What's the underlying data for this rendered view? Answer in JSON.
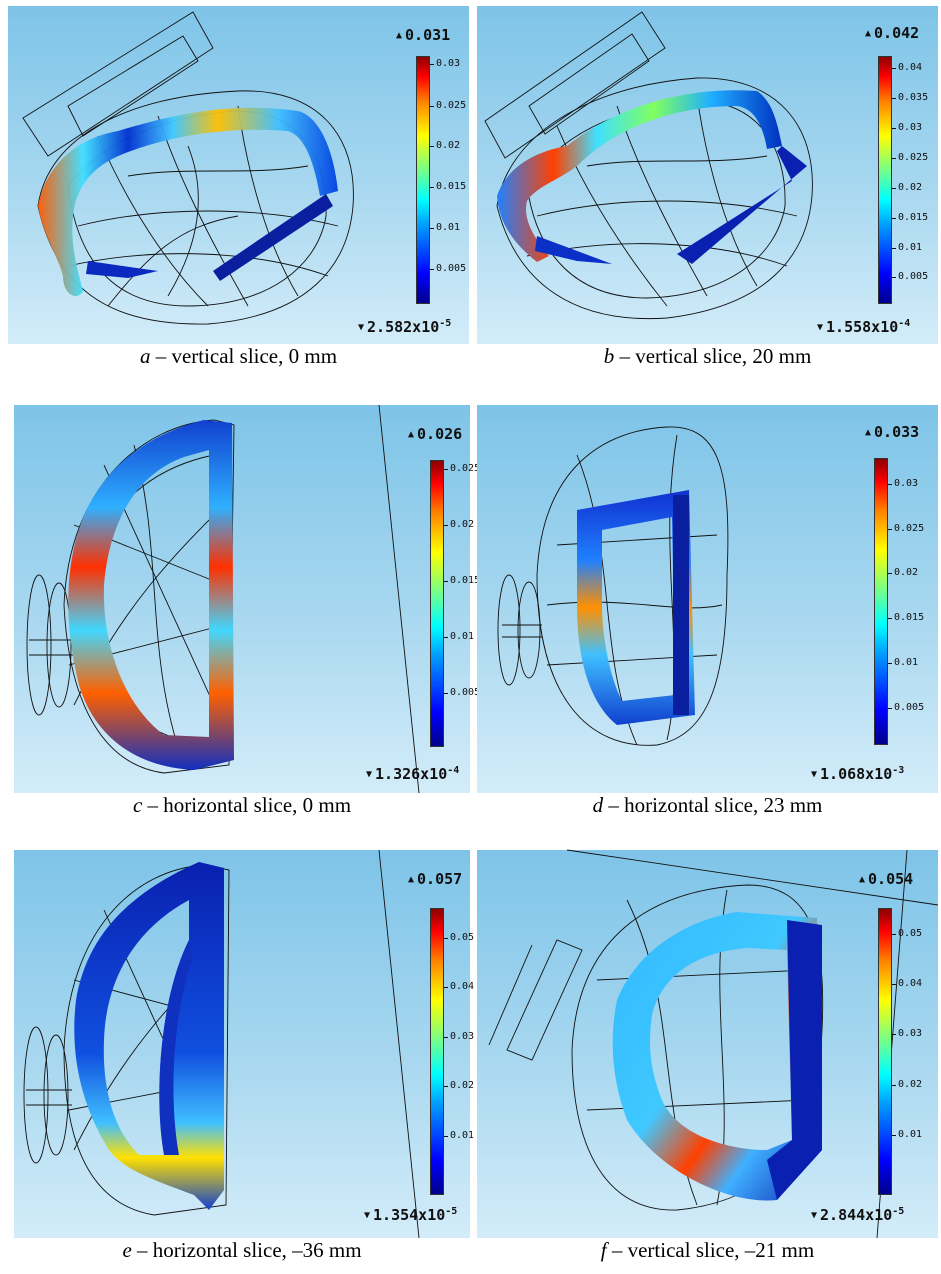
{
  "panels": [
    {
      "letter": "a",
      "caption": "– vertical slice, 0 mm",
      "max": "0.031",
      "min_base": "2.582x10",
      "min_exp": "-5",
      "ticks": [
        "0.03",
        "0.025",
        "0.02",
        "0.015",
        "0.01",
        "0.005"
      ]
    },
    {
      "letter": "b",
      "caption": "– vertical slice, 20 mm",
      "max": "0.042",
      "min_base": "1.558x10",
      "min_exp": "-4",
      "ticks": [
        "0.04",
        "0.035",
        "0.03",
        "0.025",
        "0.02",
        "0.015",
        "0.01",
        "0.005"
      ]
    },
    {
      "letter": "c",
      "caption": "– horizontal slice, 0 mm",
      "max": "0.026",
      "min_base": "1.326x10",
      "min_exp": "-4",
      "ticks": [
        "0.025",
        "0.02",
        "0.015",
        "0.01",
        "0.005"
      ]
    },
    {
      "letter": "d",
      "caption": "– horizontal slice, 23 mm",
      "max": "0.033",
      "min_base": "1.068x10",
      "min_exp": "-3",
      "ticks": [
        "0.03",
        "0.025",
        "0.02",
        "0.015",
        "0.01",
        "0.005"
      ]
    },
    {
      "letter": "e",
      "caption": "– horizontal slice, –36 mm",
      "max": "0.057",
      "min_base": "1.354x10",
      "min_exp": "-5",
      "ticks": [
        "0.05",
        "0.04",
        "0.03",
        "0.02",
        "0.01"
      ]
    },
    {
      "letter": "f",
      "caption": "– vertical slice, –21 mm",
      "max": "0.054",
      "min_base": "2.844x10",
      "min_exp": "-5",
      "ticks": [
        "0.05",
        "0.04",
        "0.03",
        "0.02",
        "0.01"
      ]
    }
  ],
  "colors": {
    "colormap": "jet",
    "background_top": "#7ec4e8",
    "background_bottom": "#d3ecf9"
  }
}
